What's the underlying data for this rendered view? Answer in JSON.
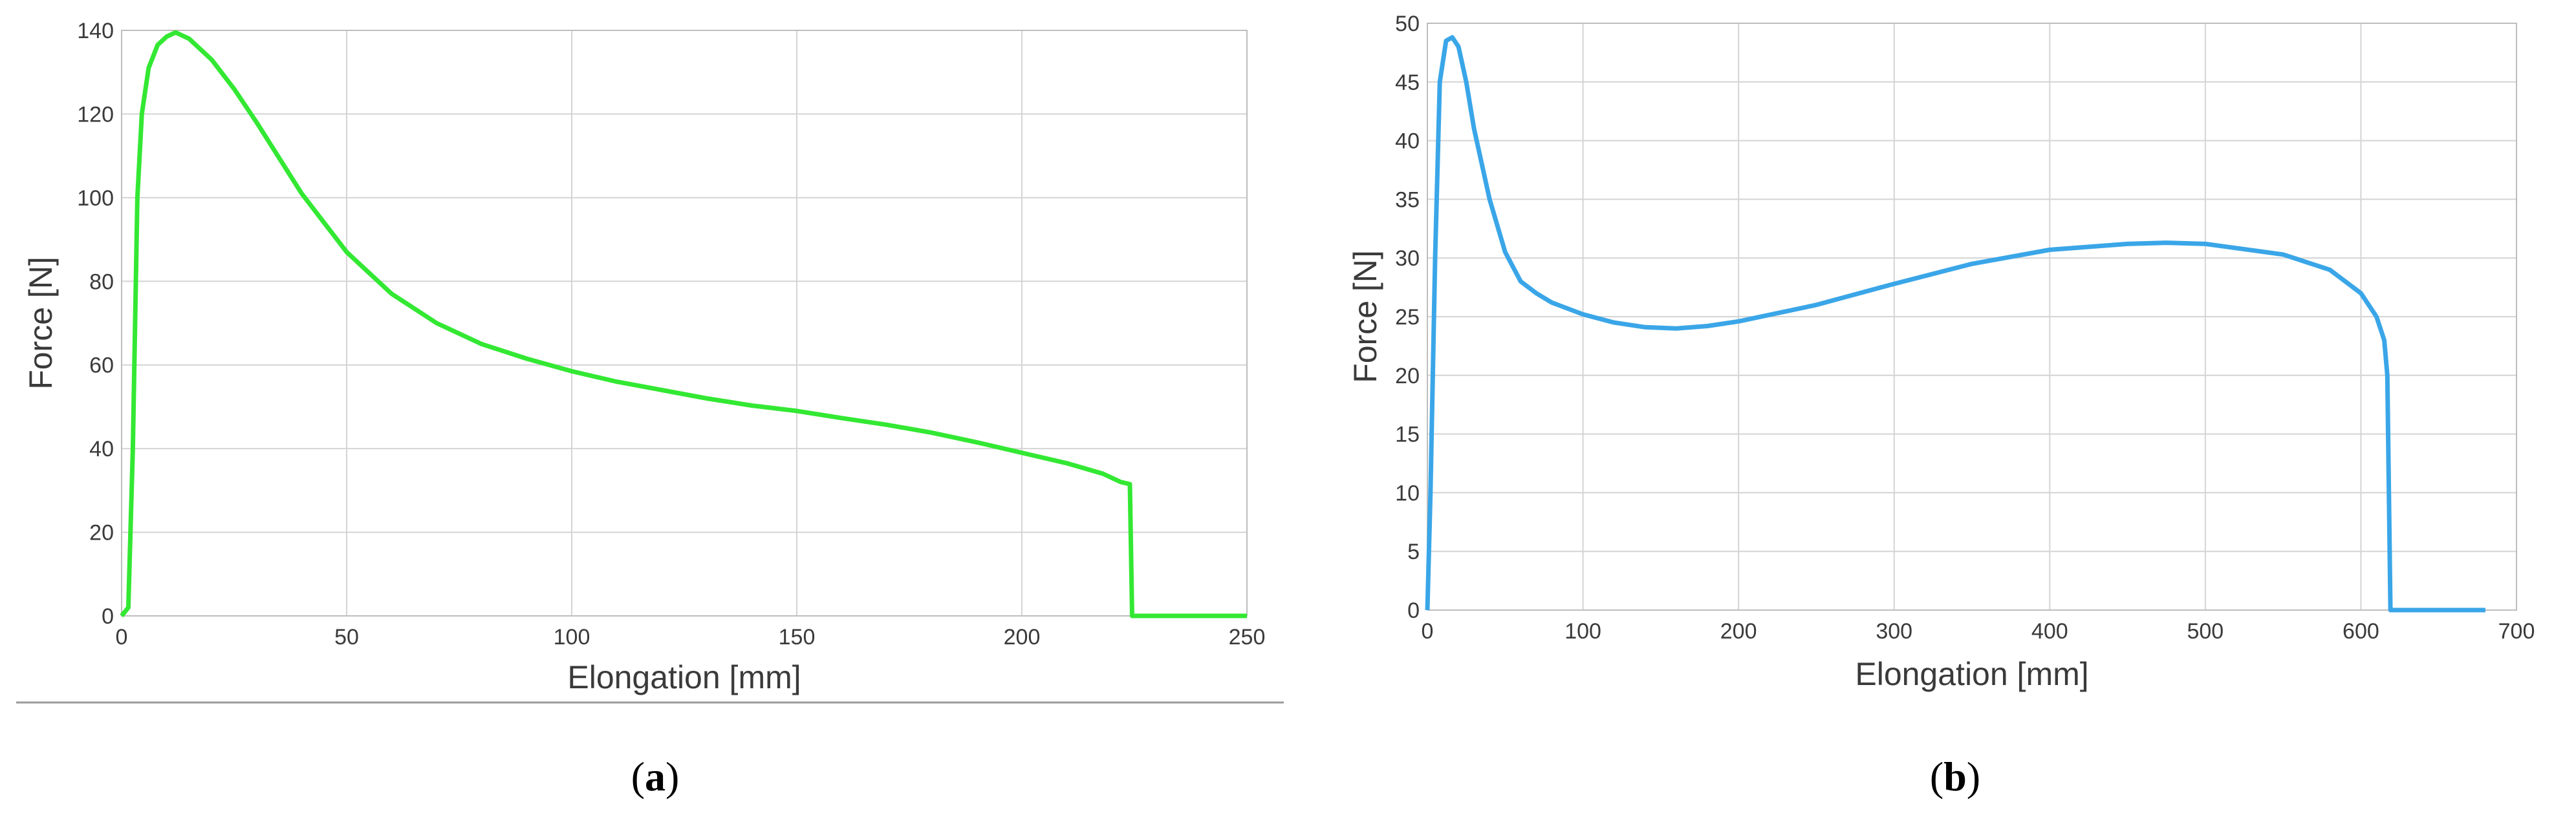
{
  "chart_data": [
    {
      "type": "line",
      "caption_open": "(",
      "caption_letter": "a",
      "caption_close": ")",
      "xlabel": "Elongation [mm]",
      "ylabel": "Force [N]",
      "xlim": [
        0,
        250
      ],
      "ylim": [
        0,
        140
      ],
      "xticks": [
        0,
        50,
        100,
        150,
        200,
        250
      ],
      "yticks": [
        0,
        20,
        40,
        60,
        80,
        100,
        120,
        140
      ],
      "grid": true,
      "color": "#33e833",
      "series": [
        {
          "x": [
            0,
            1.5,
            2.5,
            3.5,
            4.5,
            6,
            8,
            10,
            12,
            15,
            20,
            25,
            30,
            40,
            50,
            60,
            70,
            80,
            90,
            100,
            110,
            120,
            130,
            140,
            150,
            160,
            170,
            180,
            190,
            200,
            210,
            218,
            222,
            224,
            224.5,
            225,
            250
          ],
          "y": [
            0,
            2,
            40,
            100,
            120,
            131,
            136.5,
            138.5,
            139.5,
            138,
            133,
            126,
            118,
            101,
            87,
            77,
            70,
            65,
            61.5,
            58.5,
            56,
            54,
            52,
            50.3,
            49,
            47.3,
            45.7,
            43.8,
            41.5,
            39,
            36.5,
            34,
            32,
            31.5,
            0,
            0,
            0
          ]
        }
      ]
    },
    {
      "type": "line",
      "caption_open": "(",
      "caption_letter": "b",
      "caption_close": ")",
      "xlabel": "Elongation [mm]",
      "ylabel": "Force [N]",
      "xlim": [
        0,
        700
      ],
      "ylim": [
        0,
        50
      ],
      "xticks": [
        0,
        100,
        200,
        300,
        400,
        500,
        600,
        700
      ],
      "yticks": [
        0,
        5,
        10,
        15,
        20,
        25,
        30,
        35,
        40,
        45,
        50
      ],
      "grid": true,
      "color": "#3aa6e8",
      "series": [
        {
          "x": [
            0,
            2,
            5,
            8,
            12,
            16,
            20,
            25,
            30,
            40,
            50,
            60,
            70,
            80,
            100,
            120,
            140,
            160,
            180,
            200,
            250,
            300,
            350,
            400,
            450,
            475,
            500,
            550,
            580,
            600,
            610,
            615,
            617,
            618,
            619,
            620,
            680
          ],
          "y": [
            0,
            10,
            30,
            45,
            48.5,
            48.8,
            48,
            45,
            41,
            35,
            30.5,
            28,
            27,
            26.2,
            25.2,
            24.5,
            24.1,
            24,
            24.2,
            24.6,
            26,
            27.8,
            29.5,
            30.7,
            31.2,
            31.3,
            31.2,
            30.3,
            29,
            27,
            25,
            23,
            20,
            10,
            0,
            0,
            0
          ]
        }
      ]
    }
  ]
}
